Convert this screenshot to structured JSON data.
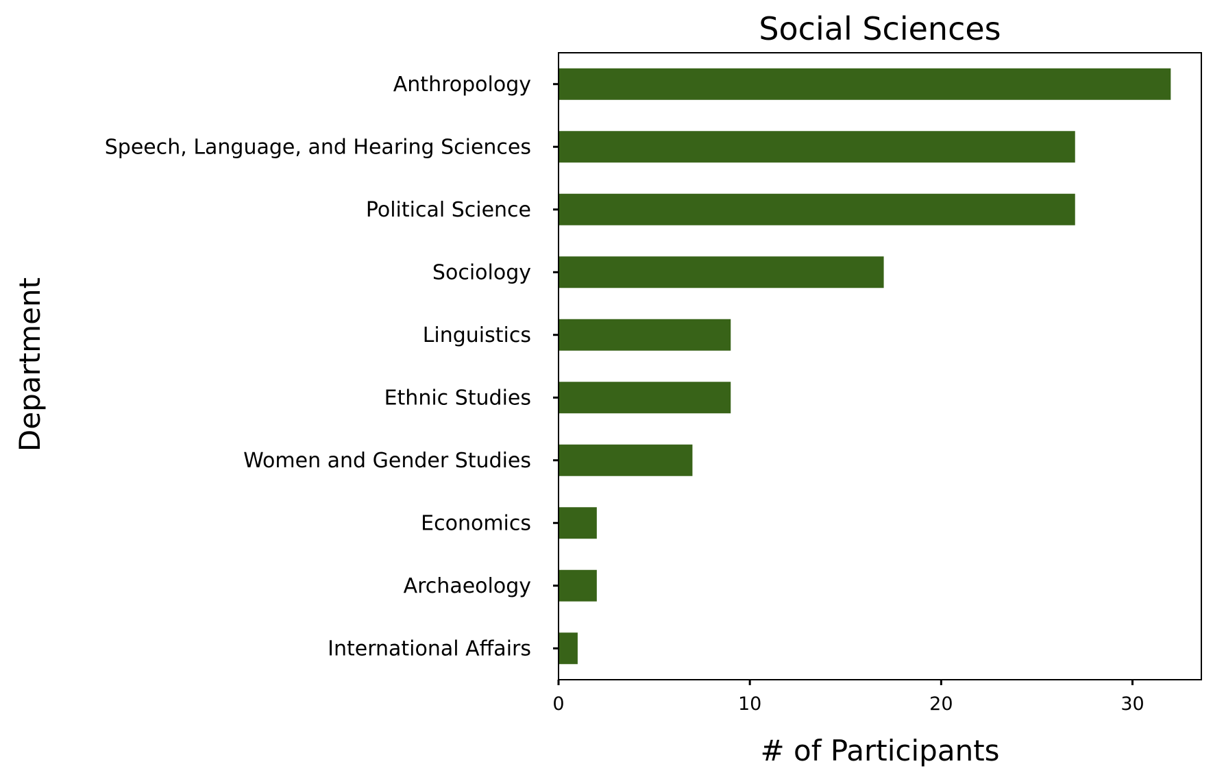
{
  "chart_data": {
    "type": "bar",
    "orientation": "horizontal",
    "title": "Social Sciences",
    "xlabel": "# of Participants",
    "ylabel": "Department",
    "categories": [
      "Anthropology",
      "Speech, Language, and Hearing Sciences",
      "Political Science",
      "Sociology",
      "Linguistics",
      "Ethnic Studies",
      "Women and Gender Studies",
      "Economics",
      "Archaeology",
      "International Affairs"
    ],
    "values": [
      32,
      27,
      27,
      17,
      9,
      9,
      7,
      2,
      2,
      1
    ],
    "xlim": [
      0,
      33.6
    ],
    "xticks": [
      0,
      10,
      20,
      30
    ],
    "grid": false,
    "bar_color": "#386318"
  }
}
